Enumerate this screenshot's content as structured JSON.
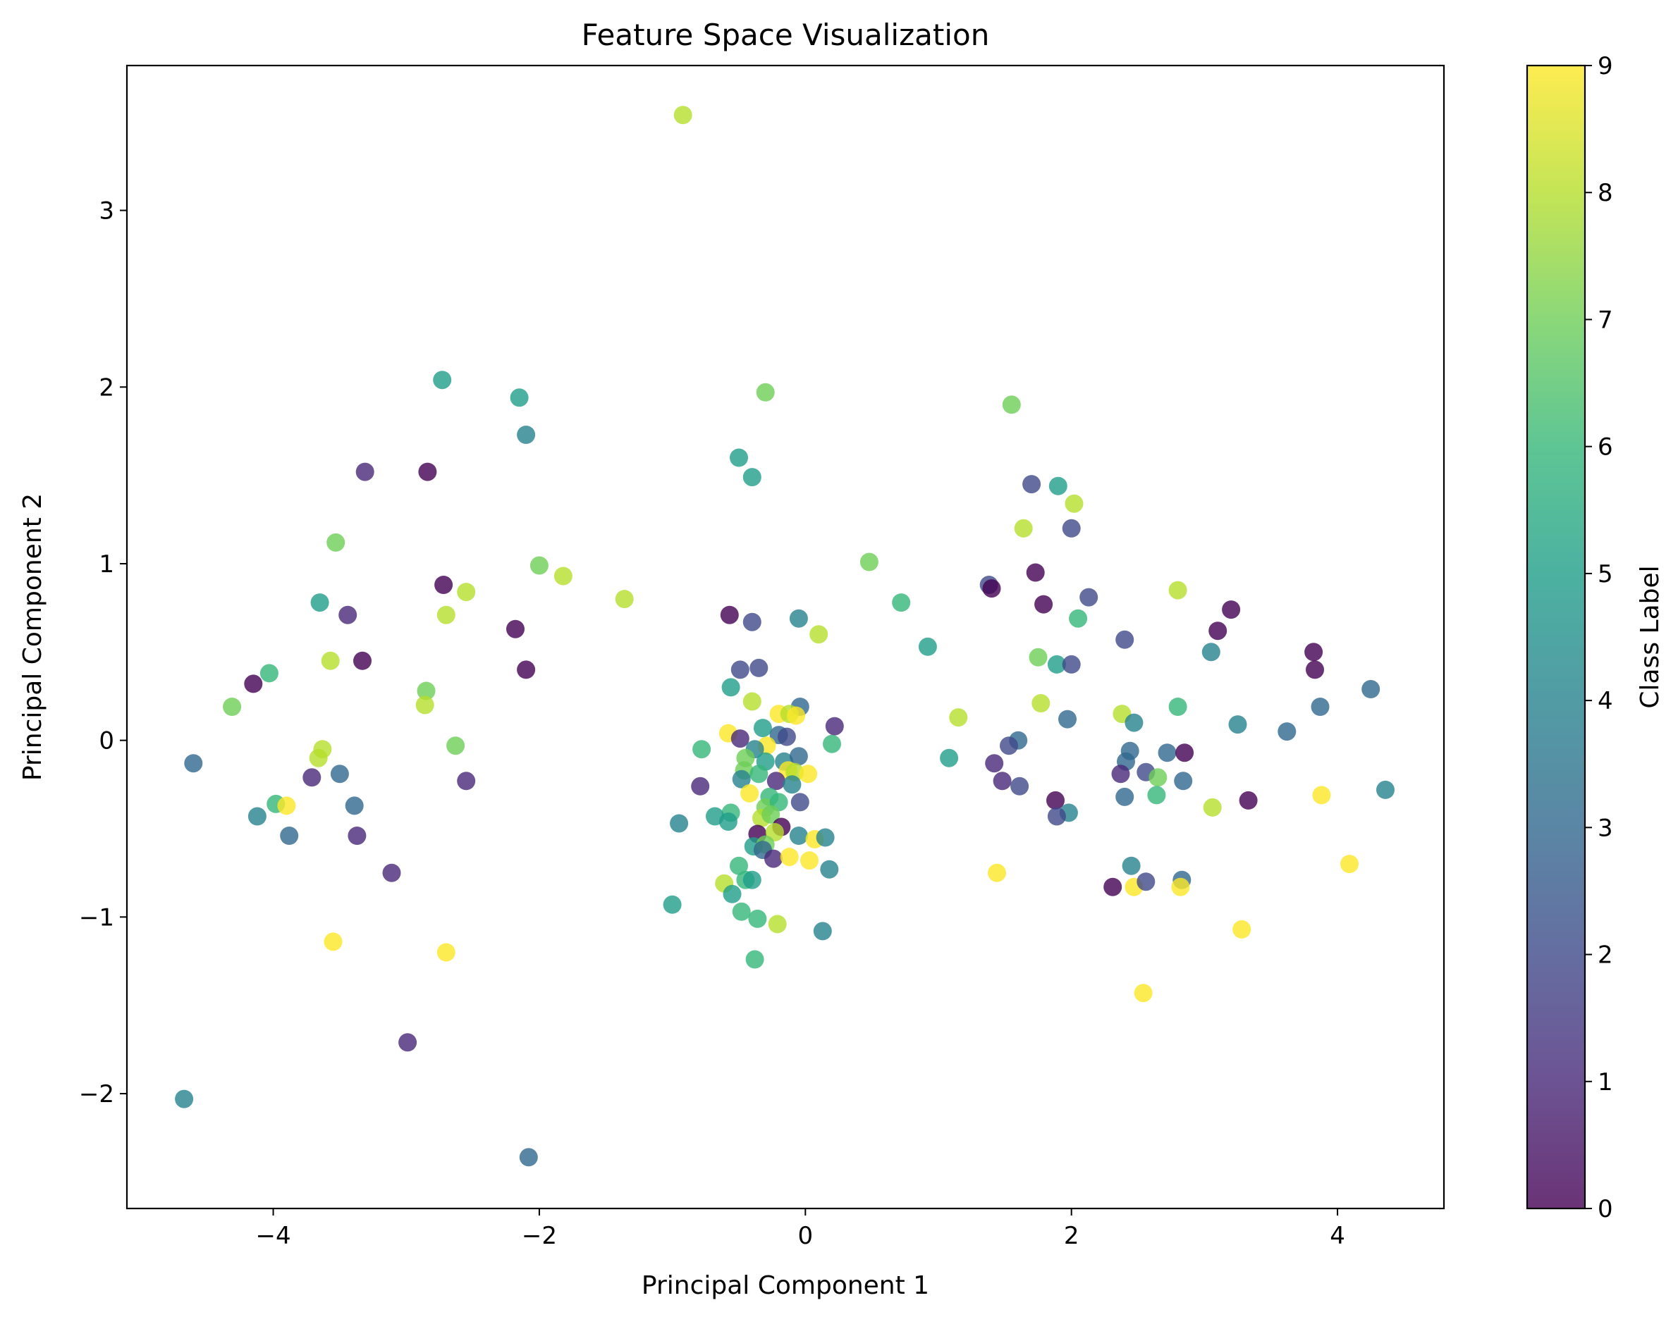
{
  "chart_data": {
    "type": "scatter",
    "title": "Feature Space Visualization",
    "xlabel": "Principal Component 1",
    "ylabel": "Principal Component 2",
    "xlim": [
      -5.1,
      4.8
    ],
    "ylim": [
      -2.65,
      3.82
    ],
    "xticks": [
      -4,
      -2,
      0,
      2,
      4
    ],
    "yticks": [
      -2,
      -1,
      0,
      1,
      2,
      3
    ],
    "grid": false,
    "colorbar": {
      "label": "Class Label",
      "range": [
        0,
        9
      ],
      "ticks": [
        0,
        1,
        2,
        3,
        4,
        5,
        6,
        7,
        8,
        9
      ],
      "colormap": "viridis",
      "stops": [
        "#440154",
        "#482878",
        "#3e4989",
        "#31688e",
        "#26828e",
        "#1f9e89",
        "#35b779",
        "#6ece58",
        "#b5de2b",
        "#fde725"
      ]
    },
    "marker_alpha": 0.8,
    "points": [
      {
        "x": -0.92,
        "y": 3.54,
        "c": 8
      },
      {
        "x": -2.73,
        "y": 2.04,
        "c": 5
      },
      {
        "x": -2.15,
        "y": 1.94,
        "c": 5
      },
      {
        "x": -2.1,
        "y": 1.73,
        "c": 4
      },
      {
        "x": -0.3,
        "y": 1.97,
        "c": 7
      },
      {
        "x": -0.5,
        "y": 1.6,
        "c": 5
      },
      {
        "x": -0.4,
        "y": 1.49,
        "c": 5
      },
      {
        "x": 1.55,
        "y": 1.9,
        "c": 7
      },
      {
        "x": -3.31,
        "y": 1.52,
        "c": 1
      },
      {
        "x": -2.84,
        "y": 1.52,
        "c": 0
      },
      {
        "x": -3.53,
        "y": 1.12,
        "c": 7
      },
      {
        "x": -2.72,
        "y": 0.88,
        "c": 0
      },
      {
        "x": -2.55,
        "y": 0.84,
        "c": 8
      },
      {
        "x": -2.0,
        "y": 0.99,
        "c": 7
      },
      {
        "x": -1.82,
        "y": 0.93,
        "c": 8
      },
      {
        "x": -1.36,
        "y": 0.8,
        "c": 8
      },
      {
        "x": 0.48,
        "y": 1.01,
        "c": 7
      },
      {
        "x": -3.65,
        "y": 0.78,
        "c": 5
      },
      {
        "x": -3.44,
        "y": 0.71,
        "c": 1
      },
      {
        "x": -2.7,
        "y": 0.71,
        "c": 8
      },
      {
        "x": -2.18,
        "y": 0.63,
        "c": 0
      },
      {
        "x": -2.1,
        "y": 0.4,
        "c": 0
      },
      {
        "x": -3.57,
        "y": 0.45,
        "c": 8
      },
      {
        "x": -3.33,
        "y": 0.45,
        "c": 0
      },
      {
        "x": -4.15,
        "y": 0.32,
        "c": 0
      },
      {
        "x": -4.03,
        "y": 0.38,
        "c": 6
      },
      {
        "x": -4.31,
        "y": 0.19,
        "c": 7
      },
      {
        "x": -2.85,
        "y": 0.28,
        "c": 7
      },
      {
        "x": -2.86,
        "y": 0.2,
        "c": 8
      },
      {
        "x": -4.6,
        "y": -0.13,
        "c": 3
      },
      {
        "x": -3.63,
        "y": -0.05,
        "c": 8
      },
      {
        "x": -3.66,
        "y": -0.1,
        "c": 8
      },
      {
        "x": -2.63,
        "y": -0.03,
        "c": 7
      },
      {
        "x": -3.71,
        "y": -0.21,
        "c": 1
      },
      {
        "x": -3.5,
        "y": -0.19,
        "c": 3
      },
      {
        "x": -2.55,
        "y": -0.23,
        "c": 1
      },
      {
        "x": -3.98,
        "y": -0.36,
        "c": 6
      },
      {
        "x": -3.9,
        "y": -0.37,
        "c": 9
      },
      {
        "x": -4.12,
        "y": -0.43,
        "c": 4
      },
      {
        "x": -3.39,
        "y": -0.37,
        "c": 3
      },
      {
        "x": -3.88,
        "y": -0.54,
        "c": 3
      },
      {
        "x": -3.37,
        "y": -0.54,
        "c": 1
      },
      {
        "x": -3.11,
        "y": -0.75,
        "c": 1
      },
      {
        "x": -3.55,
        "y": -1.14,
        "c": 9
      },
      {
        "x": -2.7,
        "y": -1.2,
        "c": 9
      },
      {
        "x": -2.99,
        "y": -1.71,
        "c": 1
      },
      {
        "x": -4.67,
        "y": -2.03,
        "c": 4
      },
      {
        "x": -2.08,
        "y": -2.36,
        "c": 3
      },
      {
        "x": -0.57,
        "y": 0.71,
        "c": 0
      },
      {
        "x": -0.4,
        "y": 0.67,
        "c": 2
      },
      {
        "x": -0.05,
        "y": 0.69,
        "c": 4
      },
      {
        "x": 0.1,
        "y": 0.6,
        "c": 8
      },
      {
        "x": -0.49,
        "y": 0.4,
        "c": 2
      },
      {
        "x": -0.35,
        "y": 0.41,
        "c": 2
      },
      {
        "x": -0.56,
        "y": 0.3,
        "c": 5
      },
      {
        "x": -0.4,
        "y": 0.22,
        "c": 8
      },
      {
        "x": -0.04,
        "y": 0.19,
        "c": 3
      },
      {
        "x": -0.2,
        "y": 0.15,
        "c": 9
      },
      {
        "x": -0.12,
        "y": 0.15,
        "c": 8
      },
      {
        "x": -0.07,
        "y": 0.14,
        "c": 9
      },
      {
        "x": 0.22,
        "y": 0.08,
        "c": 1
      },
      {
        "x": -0.32,
        "y": 0.07,
        "c": 5
      },
      {
        "x": -0.58,
        "y": 0.04,
        "c": 9
      },
      {
        "x": -0.49,
        "y": 0.01,
        "c": 1
      },
      {
        "x": -0.2,
        "y": 0.03,
        "c": 3
      },
      {
        "x": -0.14,
        "y": 0.02,
        "c": 2
      },
      {
        "x": -0.29,
        "y": -0.03,
        "c": 9
      },
      {
        "x": -0.38,
        "y": -0.05,
        "c": 4
      },
      {
        "x": -0.78,
        "y": -0.05,
        "c": 6
      },
      {
        "x": -0.45,
        "y": -0.1,
        "c": 7
      },
      {
        "x": -0.3,
        "y": -0.12,
        "c": 5
      },
      {
        "x": -0.16,
        "y": -0.12,
        "c": 4
      },
      {
        "x": -0.05,
        "y": -0.09,
        "c": 3
      },
      {
        "x": -0.46,
        "y": -0.17,
        "c": 7
      },
      {
        "x": -0.35,
        "y": -0.19,
        "c": 6
      },
      {
        "x": -0.13,
        "y": -0.17,
        "c": 9
      },
      {
        "x": -0.08,
        "y": -0.18,
        "c": 8
      },
      {
        "x": 0.02,
        "y": -0.19,
        "c": 9
      },
      {
        "x": -0.48,
        "y": -0.22,
        "c": 4
      },
      {
        "x": -0.22,
        "y": -0.23,
        "c": 1
      },
      {
        "x": -0.79,
        "y": -0.26,
        "c": 1
      },
      {
        "x": -0.42,
        "y": -0.3,
        "c": 9
      },
      {
        "x": -0.27,
        "y": -0.32,
        "c": 6
      },
      {
        "x": -0.1,
        "y": -0.25,
        "c": 4
      },
      {
        "x": -0.04,
        "y": -0.35,
        "c": 2
      },
      {
        "x": -0.3,
        "y": -0.38,
        "c": 7
      },
      {
        "x": -0.2,
        "y": -0.35,
        "c": 6
      },
      {
        "x": -0.56,
        "y": -0.41,
        "c": 6
      },
      {
        "x": -0.68,
        "y": -0.43,
        "c": 5
      },
      {
        "x": -0.58,
        "y": -0.46,
        "c": 5
      },
      {
        "x": -0.33,
        "y": -0.44,
        "c": 8
      },
      {
        "x": -0.26,
        "y": -0.42,
        "c": 7
      },
      {
        "x": -0.18,
        "y": -0.49,
        "c": 0
      },
      {
        "x": -0.95,
        "y": -0.47,
        "c": 4
      },
      {
        "x": -0.36,
        "y": -0.53,
        "c": 0
      },
      {
        "x": -0.23,
        "y": -0.52,
        "c": 8
      },
      {
        "x": -0.05,
        "y": -0.54,
        "c": 4
      },
      {
        "x": 0.07,
        "y": -0.56,
        "c": 9
      },
      {
        "x": 0.15,
        "y": -0.55,
        "c": 4
      },
      {
        "x": -0.39,
        "y": -0.6,
        "c": 5
      },
      {
        "x": -0.3,
        "y": -0.59,
        "c": 7
      },
      {
        "x": -0.32,
        "y": -0.62,
        "c": 3
      },
      {
        "x": -0.24,
        "y": -0.67,
        "c": 1
      },
      {
        "x": -0.12,
        "y": -0.66,
        "c": 9
      },
      {
        "x": 0.03,
        "y": -0.68,
        "c": 9
      },
      {
        "x": -0.5,
        "y": -0.71,
        "c": 6
      },
      {
        "x": 0.18,
        "y": -0.73,
        "c": 4
      },
      {
        "x": -0.61,
        "y": -0.81,
        "c": 8
      },
      {
        "x": -0.45,
        "y": -0.79,
        "c": 6
      },
      {
        "x": -0.4,
        "y": -0.79,
        "c": 5
      },
      {
        "x": -0.55,
        "y": -0.87,
        "c": 5
      },
      {
        "x": -1.0,
        "y": -0.93,
        "c": 5
      },
      {
        "x": -0.48,
        "y": -0.97,
        "c": 6
      },
      {
        "x": -0.36,
        "y": -1.01,
        "c": 6
      },
      {
        "x": -0.21,
        "y": -1.04,
        "c": 8
      },
      {
        "x": 0.13,
        "y": -1.08,
        "c": 4
      },
      {
        "x": -0.38,
        "y": -1.24,
        "c": 6
      },
      {
        "x": 0.72,
        "y": 0.78,
        "c": 6
      },
      {
        "x": 0.92,
        "y": 0.53,
        "c": 5
      },
      {
        "x": 1.15,
        "y": 0.13,
        "c": 8
      },
      {
        "x": 0.2,
        "y": -0.02,
        "c": 6
      },
      {
        "x": 1.08,
        "y": -0.1,
        "c": 5
      },
      {
        "x": 1.7,
        "y": 1.45,
        "c": 2
      },
      {
        "x": 1.9,
        "y": 1.44,
        "c": 5
      },
      {
        "x": 2.02,
        "y": 1.34,
        "c": 8
      },
      {
        "x": 1.64,
        "y": 1.2,
        "c": 8
      },
      {
        "x": 2.0,
        "y": 1.2,
        "c": 2
      },
      {
        "x": 1.38,
        "y": 0.88,
        "c": 2
      },
      {
        "x": 1.4,
        "y": 0.86,
        "c": 0
      },
      {
        "x": 1.73,
        "y": 0.95,
        "c": 0
      },
      {
        "x": 2.13,
        "y": 0.81,
        "c": 2
      },
      {
        "x": 1.79,
        "y": 0.77,
        "c": 0
      },
      {
        "x": 2.05,
        "y": 0.69,
        "c": 6
      },
      {
        "x": 2.8,
        "y": 0.85,
        "c": 8
      },
      {
        "x": 3.2,
        "y": 0.74,
        "c": 0
      },
      {
        "x": 3.1,
        "y": 0.62,
        "c": 0
      },
      {
        "x": 1.75,
        "y": 0.47,
        "c": 7
      },
      {
        "x": 1.89,
        "y": 0.43,
        "c": 5
      },
      {
        "x": 2.0,
        "y": 0.43,
        "c": 2
      },
      {
        "x": 2.4,
        "y": 0.57,
        "c": 2
      },
      {
        "x": 3.05,
        "y": 0.5,
        "c": 4
      },
      {
        "x": 3.82,
        "y": 0.5,
        "c": 0
      },
      {
        "x": 3.83,
        "y": 0.4,
        "c": 0
      },
      {
        "x": 4.25,
        "y": 0.29,
        "c": 3
      },
      {
        "x": 1.77,
        "y": 0.21,
        "c": 8
      },
      {
        "x": 2.8,
        "y": 0.19,
        "c": 6
      },
      {
        "x": 3.87,
        "y": 0.19,
        "c": 3
      },
      {
        "x": 1.97,
        "y": 0.12,
        "c": 3
      },
      {
        "x": 2.38,
        "y": 0.15,
        "c": 8
      },
      {
        "x": 2.47,
        "y": 0.1,
        "c": 4
      },
      {
        "x": 3.25,
        "y": 0.09,
        "c": 4
      },
      {
        "x": 3.62,
        "y": 0.05,
        "c": 3
      },
      {
        "x": 1.6,
        "y": 0.0,
        "c": 3
      },
      {
        "x": 1.53,
        "y": -0.03,
        "c": 2
      },
      {
        "x": 2.44,
        "y": -0.06,
        "c": 3
      },
      {
        "x": 2.72,
        "y": -0.07,
        "c": 3
      },
      {
        "x": 2.85,
        "y": -0.07,
        "c": 0
      },
      {
        "x": 2.41,
        "y": -0.12,
        "c": 3
      },
      {
        "x": 1.42,
        "y": -0.13,
        "c": 1
      },
      {
        "x": 2.56,
        "y": -0.18,
        "c": 2
      },
      {
        "x": 2.37,
        "y": -0.19,
        "c": 1
      },
      {
        "x": 2.65,
        "y": -0.21,
        "c": 7
      },
      {
        "x": 1.48,
        "y": -0.23,
        "c": 1
      },
      {
        "x": 1.61,
        "y": -0.26,
        "c": 2
      },
      {
        "x": 2.84,
        "y": -0.23,
        "c": 3
      },
      {
        "x": 2.64,
        "y": -0.31,
        "c": 6
      },
      {
        "x": 2.4,
        "y": -0.32,
        "c": 3
      },
      {
        "x": 3.88,
        "y": -0.31,
        "c": 9
      },
      {
        "x": 1.88,
        "y": -0.34,
        "c": 0
      },
      {
        "x": 3.33,
        "y": -0.34,
        "c": 0
      },
      {
        "x": 4.36,
        "y": -0.28,
        "c": 4
      },
      {
        "x": 3.06,
        "y": -0.38,
        "c": 8
      },
      {
        "x": 1.98,
        "y": -0.41,
        "c": 4
      },
      {
        "x": 1.89,
        "y": -0.43,
        "c": 2
      },
      {
        "x": 1.44,
        "y": -0.75,
        "c": 9
      },
      {
        "x": 2.45,
        "y": -0.71,
        "c": 4
      },
      {
        "x": 4.09,
        "y": -0.7,
        "c": 9
      },
      {
        "x": 2.31,
        "y": -0.83,
        "c": 0
      },
      {
        "x": 2.47,
        "y": -0.83,
        "c": 9
      },
      {
        "x": 2.56,
        "y": -0.8,
        "c": 2
      },
      {
        "x": 2.83,
        "y": -0.79,
        "c": 3
      },
      {
        "x": 2.82,
        "y": -0.83,
        "c": 9
      },
      {
        "x": 3.28,
        "y": -1.07,
        "c": 9
      },
      {
        "x": 2.54,
        "y": -1.43,
        "c": 9
      }
    ]
  }
}
